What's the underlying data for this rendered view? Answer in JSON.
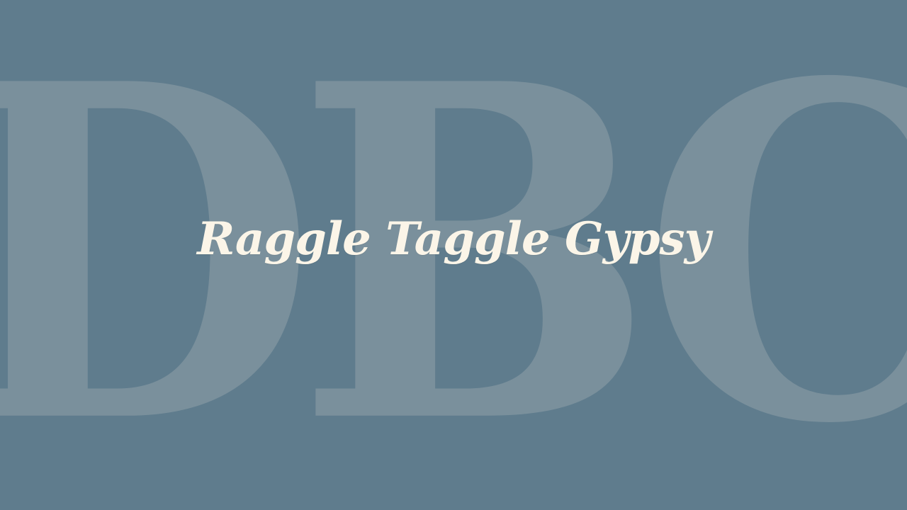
{
  "slide": {
    "background_color": "#5f7c8d",
    "watermark_text": "DBC",
    "watermark_color": "#7a909c",
    "title": "Raggle Taggle Gypsy",
    "title_color": "#fbf5e8"
  }
}
